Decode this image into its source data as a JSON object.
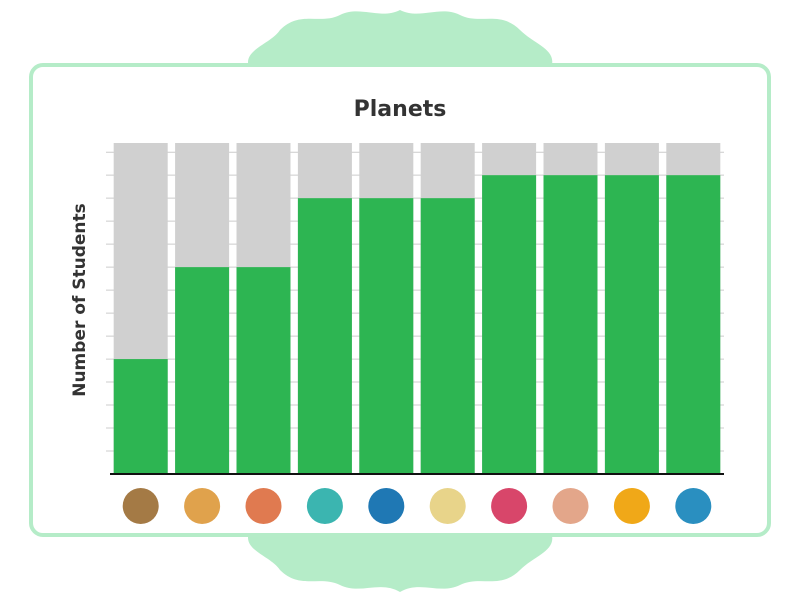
{
  "chart_data": {
    "type": "bar",
    "title": "Planets",
    "y_label": "Number of Students",
    "categories": [
      null,
      null,
      null,
      null,
      null,
      null,
      null,
      null,
      null,
      null
    ],
    "values": [
      5,
      9,
      9,
      12,
      12,
      12,
      13,
      13,
      13,
      13
    ],
    "color": "#2db552",
    "background_color": "#d0d0d0",
    "ylim": [
      0,
      14.4
    ],
    "yticks": [
      1,
      2,
      3,
      4,
      5,
      6,
      7,
      8,
      9,
      10,
      11,
      12,
      13,
      14
    ],
    "grid": true
  }
}
